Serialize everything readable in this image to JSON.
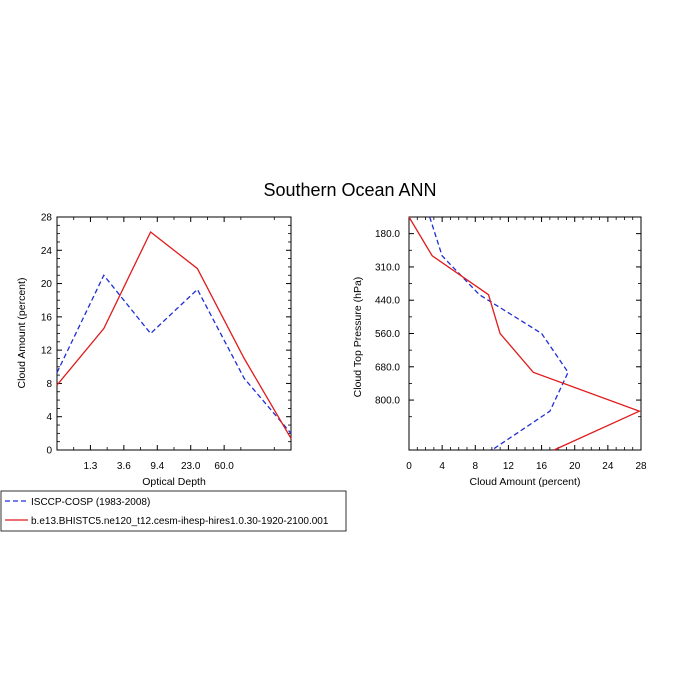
{
  "title": "Southern Ocean ANN",
  "colors": {
    "obs": "#1f2fd6",
    "model": "#e01b1b"
  },
  "chart_data": [
    {
      "type": "line",
      "name": "optical-depth-histogram",
      "xlabel": "Optical Depth",
      "ylabel": "Cloud Amount (percent)",
      "x_tick_labels": [
        "1.3",
        "3.6",
        "9.4",
        "23.0",
        "60.0"
      ],
      "x_bins": 7,
      "ylim": [
        0,
        28
      ],
      "y_ticks": [
        0,
        4,
        8,
        12,
        16,
        20,
        24,
        28
      ],
      "series": [
        {
          "name": "ISCCP-COSP (1983-2008)",
          "style": "dashed",
          "values": [
            9.3,
            21.0,
            14.0,
            19.3,
            8.6,
            2.0
          ]
        },
        {
          "name": "b.e13.BHISTC5.ne120_t12.cesm-ihesp-hires1.0.30-1920-2100.001",
          "style": "solid",
          "values": [
            7.8,
            14.6,
            26.2,
            21.8,
            11.0,
            1.4
          ]
        }
      ]
    },
    {
      "type": "line",
      "name": "cloud-top-pressure-histogram",
      "xlabel": "Cloud Amount (percent)",
      "ylabel": "Cloud Top Pressure (hPa)",
      "xlim": [
        0,
        28
      ],
      "x_ticks": [
        0,
        4,
        8,
        12,
        16,
        20,
        24,
        28
      ],
      "y_tick_labels": [
        "180.0",
        "310.0",
        "440.0",
        "560.0",
        "680.0",
        "800.0"
      ],
      "y_bins": 7,
      "series": [
        {
          "name": "ISCCP-COSP (1983-2008)",
          "style": "dashed",
          "values": [
            2.5,
            4.0,
            8.5,
            16.0,
            19.2,
            17.0,
            10.0
          ]
        },
        {
          "name": "b.e13.BHISTC5.ne120_t12.cesm-ihesp-hires1.0.30-1920-2100.001",
          "style": "solid",
          "values": [
            0.0,
            2.8,
            9.6,
            11.0,
            15.0,
            27.8,
            17.5
          ]
        }
      ]
    }
  ],
  "legend": [
    {
      "label": "ISCCP-COSP (1983-2008)",
      "style": "dashed"
    },
    {
      "label": "b.e13.BHISTC5.ne120_t12.cesm-ihesp-hires1.0.30-1920-2100.001",
      "style": "solid"
    }
  ]
}
